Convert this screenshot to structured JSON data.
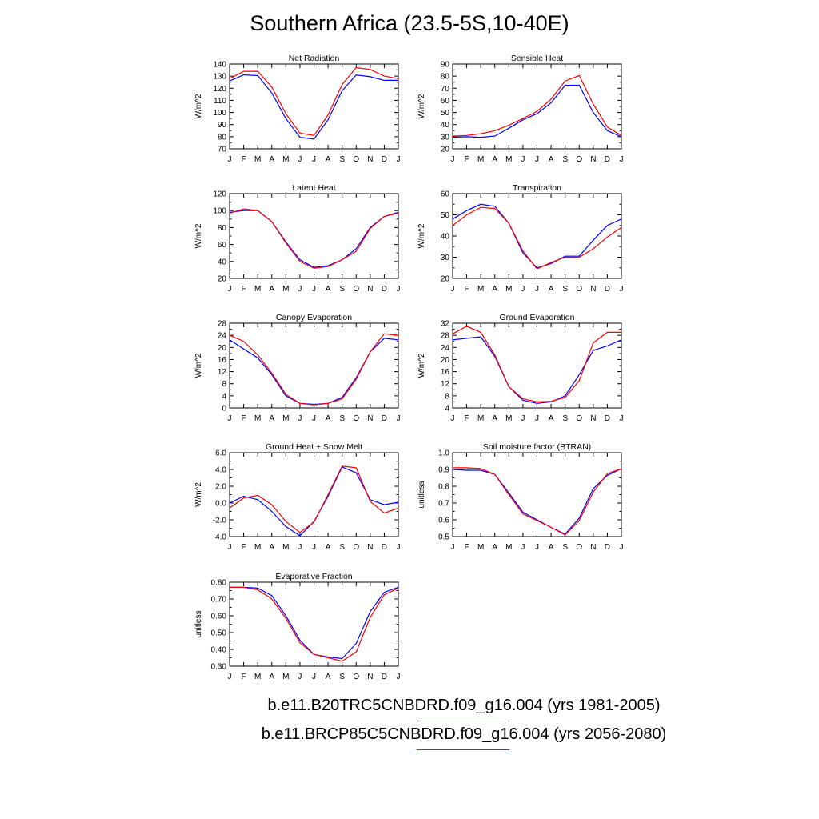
{
  "title": "Southern Africa (23.5-5S,10-40E)",
  "months": [
    "J",
    "F",
    "M",
    "A",
    "M",
    "J",
    "J",
    "A",
    "S",
    "O",
    "N",
    "D",
    "J"
  ],
  "colors": {
    "base": "#0000ff",
    "future": "#ff0000"
  },
  "legend": [
    {
      "label": "b.e11.B20TRC5CNBDRD.f09_g16.004 (yrs 1981-2005)",
      "color": "#0000ff"
    },
    {
      "label": "b.e11.BRCP85C5CNBDRD.f09_g16.004 (yrs 2056-2080)",
      "color": "#ff0000"
    }
  ],
  "chart_data": [
    {
      "type": "line",
      "title": "Net Radiation",
      "ylabel": "W/m^2",
      "ylim": [
        70,
        140
      ],
      "yticks": [
        "70",
        "80",
        "90",
        "100",
        "110",
        "120",
        "130",
        "140"
      ],
      "series": [
        {
          "color": "#0000ff",
          "values": [
            126,
            131,
            130.5,
            116,
            95,
            79.5,
            78,
            94,
            118,
            131,
            129.5,
            126.5,
            126.5
          ]
        },
        {
          "color": "#ff0000",
          "values": [
            128,
            134,
            134,
            121,
            99,
            83,
            81,
            98,
            123,
            137,
            135.5,
            130,
            128
          ]
        }
      ]
    },
    {
      "type": "line",
      "title": "Sensible Heat",
      "ylabel": "W/m^2",
      "ylim": [
        20,
        90
      ],
      "yticks": [
        "20",
        "30",
        "40",
        "50",
        "60",
        "70",
        "80",
        "90"
      ],
      "series": [
        {
          "color": "#0000ff",
          "values": [
            29.5,
            30,
            29.5,
            30.5,
            37,
            44,
            49,
            58,
            72.5,
            72.5,
            50,
            35,
            30
          ]
        },
        {
          "color": "#ff0000",
          "values": [
            30.5,
            31,
            32.5,
            35,
            39.5,
            45,
            51,
            61,
            76,
            80.5,
            57,
            38,
            31
          ]
        }
      ]
    },
    {
      "type": "line",
      "title": "Latent Heat",
      "ylabel": "W/m^2",
      "ylim": [
        20,
        120
      ],
      "yticks": [
        "20",
        "40",
        "60",
        "80",
        "100",
        "120"
      ],
      "series": [
        {
          "color": "#0000ff",
          "values": [
            98,
            100,
            100,
            87,
            63,
            42,
            33,
            35,
            42,
            55,
            80,
            93,
            98
          ]
        },
        {
          "color": "#ff0000",
          "values": [
            97,
            102,
            100,
            87,
            62,
            40,
            32,
            34,
            42,
            52,
            79,
            93,
            97
          ]
        }
      ]
    },
    {
      "type": "line",
      "title": "Transpiration",
      "ylabel": "W/m^2",
      "ylim": [
        20,
        60
      ],
      "yticks": [
        "20",
        "30",
        "40",
        "50",
        "60"
      ],
      "series": [
        {
          "color": "#0000ff",
          "values": [
            48,
            52,
            55,
            54,
            46,
            32,
            25,
            27,
            30.5,
            30.5,
            38,
            45,
            48
          ]
        },
        {
          "color": "#ff0000",
          "values": [
            45,
            50,
            53.5,
            53,
            46,
            33,
            24.5,
            27.5,
            30,
            30,
            34,
            39.5,
            44
          ]
        }
      ]
    },
    {
      "type": "line",
      "title": "Canopy Evaporation",
      "ylabel": "W/m^2",
      "ylim": [
        0,
        28
      ],
      "yticks": [
        "0",
        "4",
        "8",
        "12",
        "16",
        "20",
        "24",
        "28"
      ],
      "series": [
        {
          "color": "#0000ff",
          "values": [
            22.5,
            19.5,
            16.5,
            11,
            4,
            1.5,
            1.2,
            1.5,
            3.5,
            10,
            18.5,
            23,
            22.5
          ]
        },
        {
          "color": "#ff0000",
          "values": [
            24,
            22,
            17.5,
            11.5,
            4.5,
            1.5,
            1,
            1.5,
            3,
            9.5,
            18.5,
            24.5,
            24
          ]
        }
      ]
    },
    {
      "type": "line",
      "title": "Ground Evaporation",
      "ylabel": "W/m^2",
      "ylim": [
        4,
        32
      ],
      "yticks": [
        "4",
        "8",
        "12",
        "16",
        "20",
        "24",
        "28",
        "32"
      ],
      "series": [
        {
          "color": "#0000ff",
          "values": [
            26.5,
            27,
            27.5,
            21,
            11,
            6.5,
            5.5,
            6,
            8,
            15,
            23,
            24.5,
            26.5
          ]
        },
        {
          "color": "#ff0000",
          "values": [
            28.5,
            31,
            29,
            21.5,
            11,
            7,
            6,
            6.2,
            7.5,
            13,
            25.5,
            29,
            29
          ]
        }
      ]
    },
    {
      "type": "line",
      "title": "Ground Heat + Snow Melt",
      "ylabel": "W/m^2",
      "ylim": [
        -4,
        6
      ],
      "yticks": [
        "-4.0",
        "-2.0",
        "0.0",
        "2.0",
        "4.0",
        "6.0"
      ],
      "series": [
        {
          "color": "#0000ff",
          "values": [
            0,
            0.8,
            0.4,
            -1,
            -2.8,
            -3.9,
            -2.2,
            0.8,
            4.3,
            3.6,
            0.4,
            -0.2,
            0.1
          ]
        },
        {
          "color": "#ff0000",
          "values": [
            -0.6,
            0.6,
            0.9,
            -0.2,
            -2.2,
            -3.5,
            -2.3,
            1,
            4.4,
            4.2,
            0.2,
            -1.2,
            -0.6
          ]
        }
      ]
    },
    {
      "type": "line",
      "title": "Soil moisture factor (BTRAN)",
      "ylabel": "unitless",
      "ylim": [
        0.5,
        1.0
      ],
      "yticks": [
        "0.5",
        "0.6",
        "0.7",
        "0.8",
        "0.9",
        "1.0"
      ],
      "series": [
        {
          "color": "#0000ff",
          "values": [
            0.9,
            0.895,
            0.895,
            0.87,
            0.76,
            0.645,
            0.6,
            0.555,
            0.515,
            0.61,
            0.785,
            0.865,
            0.905
          ]
        },
        {
          "color": "#ff0000",
          "values": [
            0.91,
            0.91,
            0.905,
            0.87,
            0.75,
            0.635,
            0.595,
            0.555,
            0.51,
            0.595,
            0.765,
            0.875,
            0.905
          ]
        }
      ]
    },
    {
      "type": "line",
      "title": "Evaporative Fraction",
      "ylabel": "unitless",
      "ylim": [
        0.3,
        0.8
      ],
      "yticks": [
        "0.30",
        "0.40",
        "0.50",
        "0.60",
        "0.70",
        "0.80"
      ],
      "series": [
        {
          "color": "#0000ff",
          "values": [
            0.77,
            0.77,
            0.765,
            0.72,
            0.6,
            0.455,
            0.37,
            0.355,
            0.345,
            0.435,
            0.625,
            0.74,
            0.77
          ]
        },
        {
          "color": "#ff0000",
          "values": [
            0.77,
            0.77,
            0.755,
            0.7,
            0.585,
            0.44,
            0.37,
            0.35,
            0.33,
            0.385,
            0.59,
            0.725,
            0.765
          ]
        }
      ]
    }
  ]
}
